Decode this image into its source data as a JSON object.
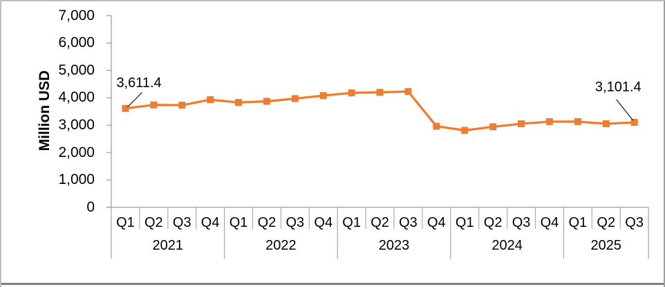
{
  "frame": {
    "background": "#ffffff",
    "border_color": "#bdbdbd",
    "bottom_border_color": "#7f7f7f"
  },
  "chart_data": {
    "type": "line",
    "title": "",
    "ylabel": "Million USD",
    "xlabel": "",
    "ylim": [
      0,
      7000
    ],
    "ytick_step": 1000,
    "ytick_labels": [
      "0",
      "1,000",
      "2,000",
      "3,000",
      "4,000",
      "5,000",
      "6,000",
      "7,000"
    ],
    "grid": false,
    "legend": "none",
    "axis_color": "#a6a6a6",
    "separator_color": "#ababab",
    "text_color": "#000000",
    "leader_color": "#333333",
    "series": [
      {
        "color": "#ED7D31",
        "marker": "square",
        "values": [
          3611.4,
          3740,
          3730,
          3930,
          3830,
          3870,
          3970,
          4080,
          4180,
          4200,
          4230,
          2960,
          2810,
          2940,
          3050,
          3130,
          3130,
          3050,
          3101.4
        ]
      }
    ],
    "x_groups": [
      {
        "year": "2021",
        "quarters": [
          "Q1",
          "Q2",
          "Q3",
          "Q4"
        ]
      },
      {
        "year": "2022",
        "quarters": [
          "Q1",
          "Q2",
          "Q3",
          "Q4"
        ]
      },
      {
        "year": "2023",
        "quarters": [
          "Q1",
          "Q2",
          "Q3",
          "Q4"
        ]
      },
      {
        "year": "2024",
        "quarters": [
          "Q1",
          "Q2",
          "Q3",
          "Q4"
        ]
      },
      {
        "year": "2025",
        "quarters": [
          "Q1",
          "Q2",
          "Q3"
        ]
      }
    ],
    "annotations": [
      {
        "text": "3,611.4",
        "point_index": 0,
        "placement": "above-right"
      },
      {
        "text": "3,101.4",
        "point_index": 18,
        "placement": "above-left"
      }
    ]
  }
}
